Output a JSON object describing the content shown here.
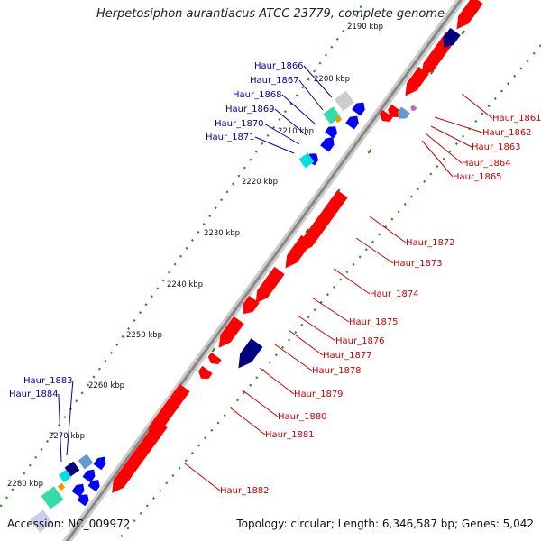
{
  "title": "Herpetosiphon aurantiacus ATCC 23779, complete genome",
  "accession": "Accession: NC_009972",
  "summary": "Topology: circular; Length: 6,346,587 bp; Genes: 5,042",
  "colors": {
    "backbone": "#999999",
    "forward_gene": "#ff0000",
    "reverse_gene": "#0000ff",
    "forward_label": "#cc0000",
    "reverse_label": "#0000aa",
    "tick_dots": "#2e8b2e",
    "dark_gene": "#000080",
    "cyan_gene": "#00e0e0",
    "green_gene": "#33dd99"
  },
  "ticks": [
    "2190 kbp",
    "2200 kbp",
    "2210 kbp",
    "2220 kbp",
    "2230 kbp",
    "2240 kbp",
    "2250 kbp",
    "2260 kbp",
    "2270 kbp",
    "2280 kbp"
  ],
  "reverse_labels": [
    "Haur_1866",
    "Haur_1867",
    "Haur_1868",
    "Haur_1869",
    "Haur_1870",
    "Haur_1871",
    "Haur_1883",
    "Haur_1884"
  ],
  "forward_labels": [
    "Haur_1861",
    "Haur_1862",
    "Haur_1863",
    "Haur_1864",
    "Haur_1865",
    "Haur_1872",
    "Haur_1873",
    "Haur_1874",
    "Haur_1875",
    "Haur_1876",
    "Haur_1877",
    "Haur_1878",
    "Haur_1879",
    "Haur_1880",
    "Haur_1881",
    "Haur_1882"
  ]
}
